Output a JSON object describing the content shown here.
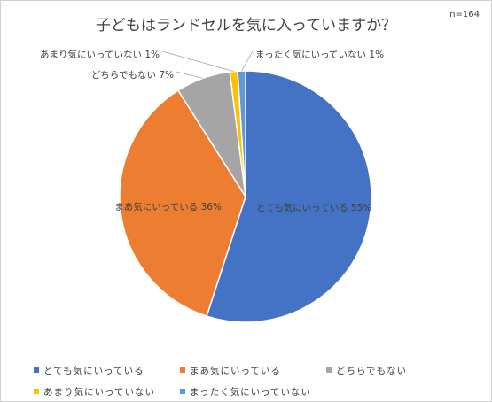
{
  "chart_data": {
    "type": "pie",
    "title": "子どもはランドセルを気に入っていますか？",
    "sample_size": "n=164",
    "start_angle_deg": 0,
    "direction": "clockwise",
    "legend_position": "bottom",
    "slices": [
      {
        "name": "とても気にいっている",
        "value": 55,
        "label": "とても気にいっている 55%",
        "color": "#4472C4"
      },
      {
        "name": "まあ気にいっている",
        "value": 36,
        "label": "まあ気にいっている 36%",
        "color": "#ED7D31"
      },
      {
        "name": "どちらでもない",
        "value": 7,
        "label": "どちらでもない 7%",
        "color": "#A5A5A5"
      },
      {
        "name": "あまり気にいっていない",
        "value": 1,
        "label": "あまり気にいっていない 1%",
        "color": "#FFC000"
      },
      {
        "name": "まったく気にいっていない",
        "value": 1,
        "label": "まったく気にいっていない 1%",
        "color": "#5B9BD5"
      }
    ]
  }
}
